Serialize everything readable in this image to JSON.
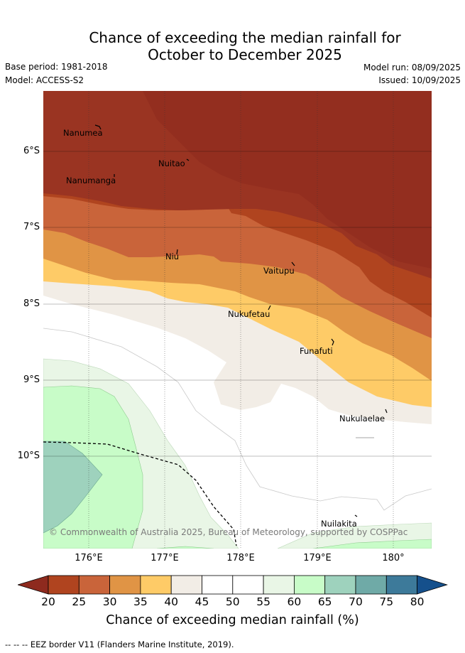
{
  "title": {
    "line1": "Chance of exceeding the median rainfall for",
    "line2": "October to December 2025"
  },
  "meta": {
    "base_period": "Base period: 1981-2018",
    "model": "Model: ACCESS-S2",
    "model_run": "Model run: 08/09/2025",
    "issued": "Issued: 10/09/2025"
  },
  "map": {
    "latitude_labels": [
      "6°S",
      "7°S",
      "8°S",
      "9°S",
      "10°S"
    ],
    "longitude_labels": [
      "176°E",
      "177°E",
      "178°E",
      "179°E",
      "180°"
    ],
    "places": [
      "Nanumea",
      "Nuitao",
      "Nanumanga",
      "Niu",
      "Vaitupu",
      "Nukufetau",
      "Funafuti",
      "Nukulaelae",
      "Nuilakita"
    ],
    "copyright": "© Commonwealth of Australia 2025, Bureau of Meteorology, supported by COSPPac"
  },
  "colorbar": {
    "ticks": [
      "20",
      "25",
      "30",
      "35",
      "40",
      "45",
      "50",
      "55",
      "60",
      "65",
      "70",
      "75",
      "80"
    ],
    "colors": [
      "#8e2a1e",
      "#b0441f",
      "#c9643a",
      "#e09445",
      "#fecb67",
      "#f2ede6",
      "#ffffff",
      "#ffffff",
      "#e9f6e6",
      "#c8fcc8",
      "#9ed2bd",
      "#6faaa7",
      "#3d7a9a",
      "#15508c"
    ],
    "label": "Chance of exceeding median rainfall (%)"
  },
  "footer": {
    "eez_note": "-- -- -- EEZ border V11 (Flanders Marine Institute, 2019)."
  }
}
